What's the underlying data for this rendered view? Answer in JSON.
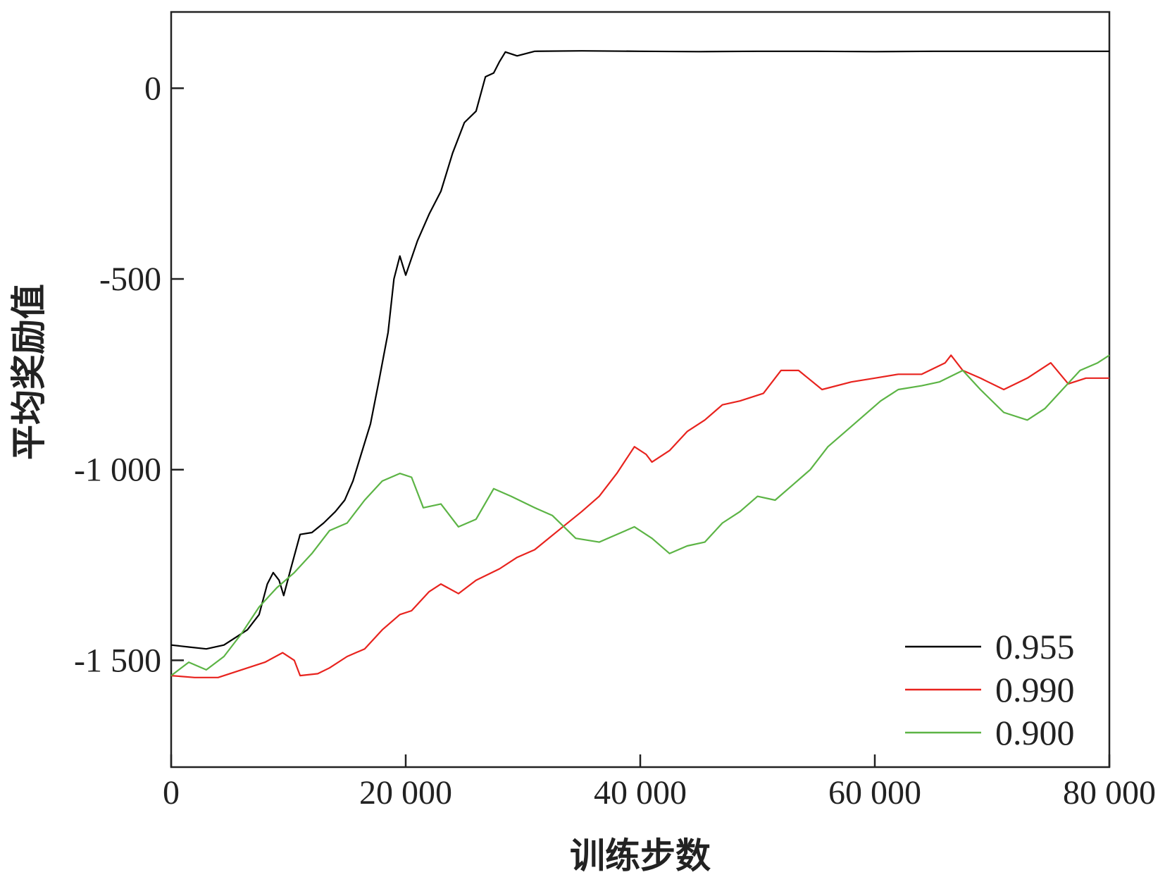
{
  "chart_data": {
    "type": "line",
    "title": "",
    "xlabel": "训练步数",
    "ylabel": "平均奖励值",
    "xlim": [
      0,
      80000
    ],
    "ylim": [
      -1780,
      200
    ],
    "xticks": [
      0,
      20000,
      40000,
      60000,
      80000
    ],
    "xtick_labels": [
      "0",
      "20 000",
      "40 000",
      "60 000",
      "80 000"
    ],
    "yticks": [
      0,
      -500,
      -1000,
      -1500
    ],
    "ytick_labels": [
      "0",
      "-500",
      "-1 000",
      "-1 500"
    ],
    "grid": false,
    "legend": "bottom-right",
    "series": [
      {
        "name": "0.955",
        "color": "#000000",
        "points": [
          [
            0,
            -1460
          ],
          [
            1500,
            -1465
          ],
          [
            3000,
            -1470
          ],
          [
            4500,
            -1460
          ],
          [
            5500,
            -1440
          ],
          [
            6500,
            -1420
          ],
          [
            7500,
            -1380
          ],
          [
            8200,
            -1300
          ],
          [
            8700,
            -1270
          ],
          [
            9200,
            -1290
          ],
          [
            9600,
            -1330
          ],
          [
            10200,
            -1260
          ],
          [
            11000,
            -1170
          ],
          [
            12000,
            -1165
          ],
          [
            13000,
            -1140
          ],
          [
            14000,
            -1110
          ],
          [
            14800,
            -1080
          ],
          [
            15500,
            -1030
          ],
          [
            16200,
            -960
          ],
          [
            17000,
            -880
          ],
          [
            17700,
            -770
          ],
          [
            18500,
            -640
          ],
          [
            19000,
            -500
          ],
          [
            19500,
            -440
          ],
          [
            20000,
            -490
          ],
          [
            21000,
            -400
          ],
          [
            22000,
            -330
          ],
          [
            23000,
            -270
          ],
          [
            24000,
            -170
          ],
          [
            25000,
            -90
          ],
          [
            26000,
            -60
          ],
          [
            26800,
            30
          ],
          [
            27500,
            40
          ],
          [
            28000,
            70
          ],
          [
            28500,
            95
          ],
          [
            29500,
            85
          ],
          [
            31000,
            97
          ],
          [
            35000,
            98
          ],
          [
            40000,
            97
          ],
          [
            45000,
            96
          ],
          [
            50000,
            97
          ],
          [
            55000,
            97
          ],
          [
            60000,
            96
          ],
          [
            65000,
            97
          ],
          [
            70000,
            97
          ],
          [
            75000,
            97
          ],
          [
            80000,
            97
          ]
        ]
      },
      {
        "name": "0.990",
        "color": "#e8231e",
        "points": [
          [
            0,
            -1540
          ],
          [
            2000,
            -1545
          ],
          [
            4000,
            -1545
          ],
          [
            6000,
            -1525
          ],
          [
            8000,
            -1505
          ],
          [
            9500,
            -1480
          ],
          [
            10500,
            -1500
          ],
          [
            11000,
            -1540
          ],
          [
            12500,
            -1535
          ],
          [
            13500,
            -1520
          ],
          [
            15000,
            -1490
          ],
          [
            16500,
            -1470
          ],
          [
            18000,
            -1420
          ],
          [
            19500,
            -1380
          ],
          [
            20500,
            -1370
          ],
          [
            22000,
            -1320
          ],
          [
            23000,
            -1300
          ],
          [
            24500,
            -1325
          ],
          [
            26000,
            -1290
          ],
          [
            28000,
            -1260
          ],
          [
            29500,
            -1230
          ],
          [
            31000,
            -1210
          ],
          [
            33000,
            -1160
          ],
          [
            35000,
            -1110
          ],
          [
            36500,
            -1070
          ],
          [
            38000,
            -1010
          ],
          [
            39500,
            -940
          ],
          [
            40500,
            -960
          ],
          [
            41000,
            -980
          ],
          [
            42500,
            -950
          ],
          [
            44000,
            -900
          ],
          [
            45500,
            -870
          ],
          [
            47000,
            -830
          ],
          [
            48500,
            -820
          ],
          [
            50500,
            -800
          ],
          [
            52000,
            -740
          ],
          [
            53500,
            -740
          ],
          [
            55500,
            -790
          ],
          [
            58000,
            -770
          ],
          [
            60000,
            -760
          ],
          [
            62000,
            -750
          ],
          [
            64000,
            -750
          ],
          [
            66000,
            -720
          ],
          [
            66500,
            -700
          ],
          [
            67500,
            -740
          ],
          [
            69000,
            -760
          ],
          [
            71000,
            -790
          ],
          [
            73000,
            -760
          ],
          [
            75000,
            -720
          ],
          [
            76500,
            -775
          ],
          [
            78000,
            -760
          ],
          [
            80000,
            -760
          ]
        ]
      },
      {
        "name": "0.900",
        "color": "#5cb445",
        "points": [
          [
            0,
            -1540
          ],
          [
            1500,
            -1505
          ],
          [
            3000,
            -1525
          ],
          [
            4500,
            -1490
          ],
          [
            6000,
            -1430
          ],
          [
            7500,
            -1360
          ],
          [
            9000,
            -1310
          ],
          [
            10500,
            -1270
          ],
          [
            12000,
            -1220
          ],
          [
            13500,
            -1160
          ],
          [
            15000,
            -1140
          ],
          [
            16500,
            -1080
          ],
          [
            18000,
            -1030
          ],
          [
            19500,
            -1010
          ],
          [
            20500,
            -1020
          ],
          [
            21500,
            -1100
          ],
          [
            23000,
            -1090
          ],
          [
            24500,
            -1150
          ],
          [
            26000,
            -1130
          ],
          [
            27500,
            -1050
          ],
          [
            29000,
            -1070
          ],
          [
            31000,
            -1100
          ],
          [
            32500,
            -1120
          ],
          [
            34500,
            -1180
          ],
          [
            36500,
            -1190
          ],
          [
            38000,
            -1170
          ],
          [
            39500,
            -1150
          ],
          [
            41000,
            -1180
          ],
          [
            42500,
            -1220
          ],
          [
            44000,
            -1200
          ],
          [
            45500,
            -1190
          ],
          [
            47000,
            -1140
          ],
          [
            48500,
            -1110
          ],
          [
            50000,
            -1070
          ],
          [
            51500,
            -1080
          ],
          [
            53000,
            -1040
          ],
          [
            54500,
            -1000
          ],
          [
            56000,
            -940
          ],
          [
            57500,
            -900
          ],
          [
            59000,
            -860
          ],
          [
            60500,
            -820
          ],
          [
            62000,
            -790
          ],
          [
            64000,
            -780
          ],
          [
            65500,
            -770
          ],
          [
            67500,
            -740
          ],
          [
            69000,
            -790
          ],
          [
            71000,
            -850
          ],
          [
            73000,
            -870
          ],
          [
            74500,
            -840
          ],
          [
            76000,
            -790
          ],
          [
            77500,
            -740
          ],
          [
            79000,
            -720
          ],
          [
            80000,
            -700
          ]
        ]
      }
    ]
  }
}
